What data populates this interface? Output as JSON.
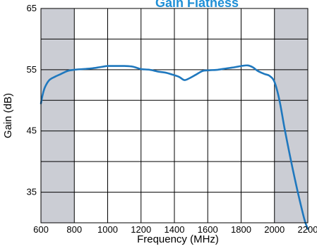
{
  "chart_data": {
    "type": "line",
    "title": "Gain Flatness",
    "xlabel": "Frequency (MHz)",
    "ylabel": "Gain (dB)",
    "xlim": [
      600,
      2200
    ],
    "ylim": [
      30,
      65
    ],
    "x_ticks": [
      600,
      800,
      1000,
      1200,
      1400,
      1600,
      1800,
      2000,
      2200
    ],
    "y_tick_labels": [
      35,
      45,
      55,
      65
    ],
    "grid": true,
    "shaded_regions": [
      [
        600,
        800
      ],
      [
        2000,
        2200
      ]
    ],
    "series": [
      {
        "x": [
          600,
          610,
          625,
          650,
          680,
          720,
          760,
          800,
          850,
          900,
          950,
          1000,
          1050,
          1100,
          1150,
          1200,
          1250,
          1300,
          1350,
          1400,
          1430,
          1460,
          1490,
          1530,
          1570,
          1610,
          1660,
          1710,
          1760,
          1800,
          1840,
          1870,
          1900,
          1940,
          1970,
          2000,
          2030,
          2060,
          2100,
          2140,
          2180,
          2200
        ],
        "y": [
          49.5,
          50.9,
          52.2,
          53.3,
          53.8,
          54.3,
          54.8,
          55.0,
          55.1,
          55.2,
          55.4,
          55.6,
          55.6,
          55.6,
          55.5,
          55.1,
          55.0,
          54.7,
          54.5,
          54.1,
          53.8,
          53.3,
          53.6,
          54.2,
          54.8,
          54.9,
          55.0,
          55.2,
          55.4,
          55.6,
          55.7,
          55.4,
          54.8,
          54.3,
          54.0,
          53.0,
          50.0,
          45.5,
          40.0,
          35.0,
          30.5,
          29.0
        ]
      }
    ],
    "colors": {
      "line": "#1f78be",
      "title": "#1f8fd6",
      "shade": "#cbcdd4",
      "grid": "#000000"
    }
  }
}
